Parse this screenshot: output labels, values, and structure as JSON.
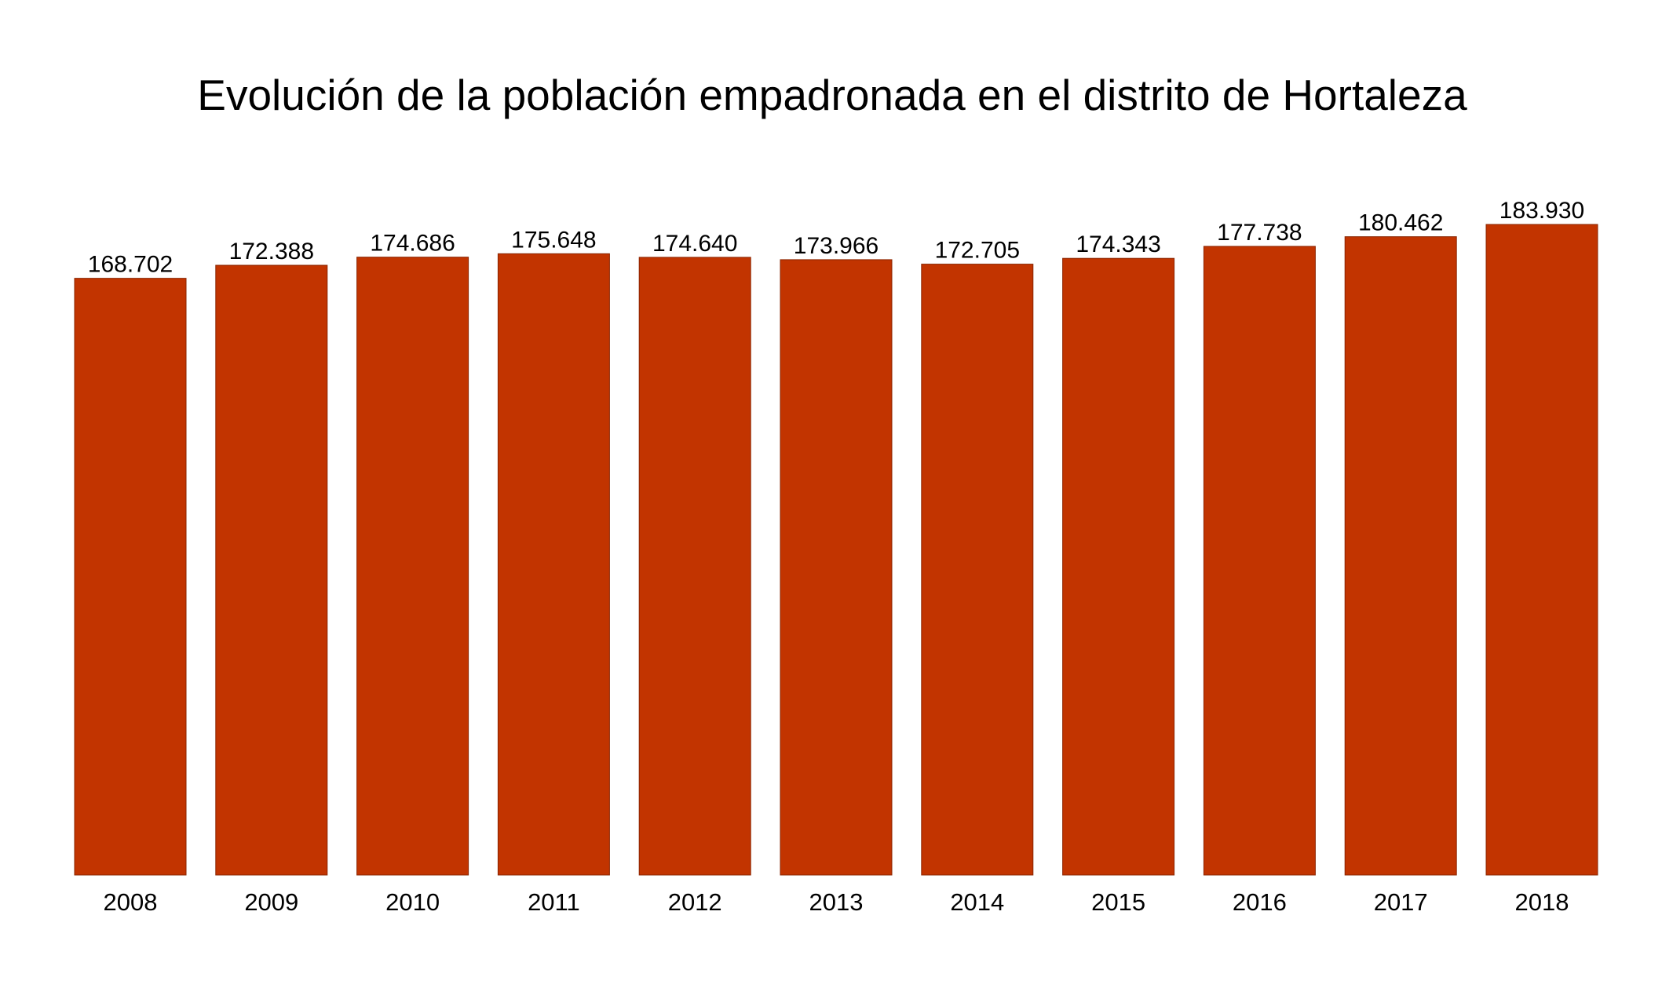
{
  "chart_data": {
    "type": "bar",
    "title": "Evolución de la población empadronada en el distrito de Hortaleza",
    "xlabel": "",
    "ylabel": "",
    "categories": [
      "2008",
      "2009",
      "2010",
      "2011",
      "2012",
      "2013",
      "2014",
      "2015",
      "2016",
      "2017",
      "2018"
    ],
    "values": [
      168702,
      172388,
      174686,
      175648,
      174640,
      173966,
      172705,
      174343,
      177738,
      180462,
      183930
    ],
    "data_labels": [
      "168.702",
      "172.388",
      "174.686",
      "175.648",
      "174.640",
      "173.966",
      "172.705",
      "174.343",
      "177.738",
      "180.462",
      "183.930"
    ],
    "ylim": [
      0,
      183930
    ],
    "grid": false,
    "y_axis_visible": false,
    "bar_color": "#c23400",
    "bar_edge_color": "#8a2400"
  }
}
